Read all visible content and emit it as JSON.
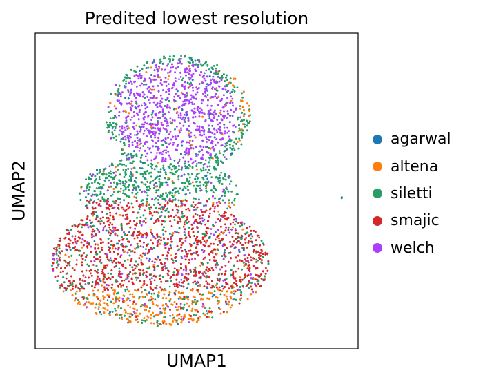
{
  "chart_data": {
    "type": "scatter",
    "title": "Predited lowest resolution",
    "xlabel": "UMAP1",
    "ylabel": "UMAP2",
    "grid": false,
    "x_ticks": false,
    "y_ticks": false,
    "legend_position": "right",
    "series": [
      {
        "name": "agarwal",
        "color": "#1f77b4"
      },
      {
        "name": "altena",
        "color": "#ff7f0e"
      },
      {
        "name": "siletti",
        "color": "#279e68"
      },
      {
        "name": "smajic",
        "color": "#d62728"
      },
      {
        "name": "welch",
        "color": "#aa40fc"
      }
    ]
  }
}
